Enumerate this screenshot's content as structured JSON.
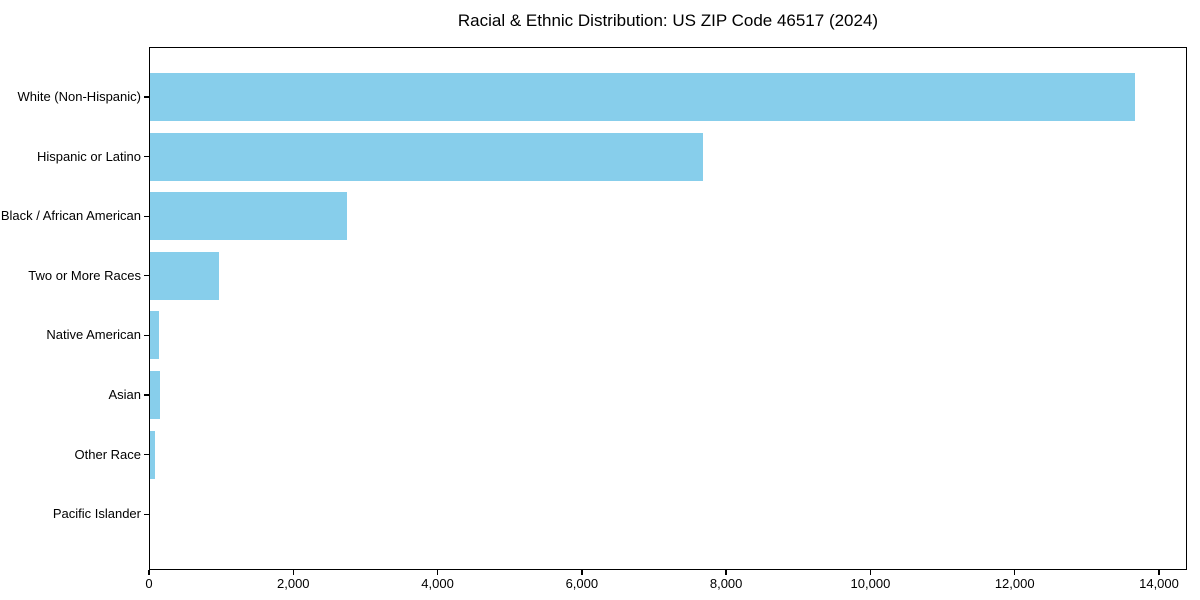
{
  "title": "Racial & Ethnic Distribution: US ZIP Code 46517 (2024)",
  "chart_data": {
    "type": "bar",
    "orientation": "horizontal",
    "title": "Racial & Ethnic Distribution: US ZIP Code 46517 (2024)",
    "categories": [
      "White (Non-Hispanic)",
      "Hispanic or Latino",
      "Black / African American",
      "Two or More Races",
      "Native American",
      "Asian",
      "Other Race",
      "Pacific Islander"
    ],
    "values": [
      13690,
      7680,
      2740,
      950,
      120,
      135,
      60,
      0
    ],
    "bar_color": "#87CEEB",
    "xlabel": "",
    "ylabel": "",
    "xlim": [
      0,
      14388
    ],
    "xticks": [
      0,
      2000,
      4000,
      6000,
      8000,
      10000,
      12000,
      14000
    ],
    "xtick_labels": [
      "0",
      "2,000",
      "4,000",
      "6,000",
      "8,000",
      "10,000",
      "12,000",
      "14,000"
    ],
    "grid": false,
    "legend": false,
    "axis_color": "#000000",
    "text_color": "#000000",
    "background_color": "#ffffff"
  }
}
